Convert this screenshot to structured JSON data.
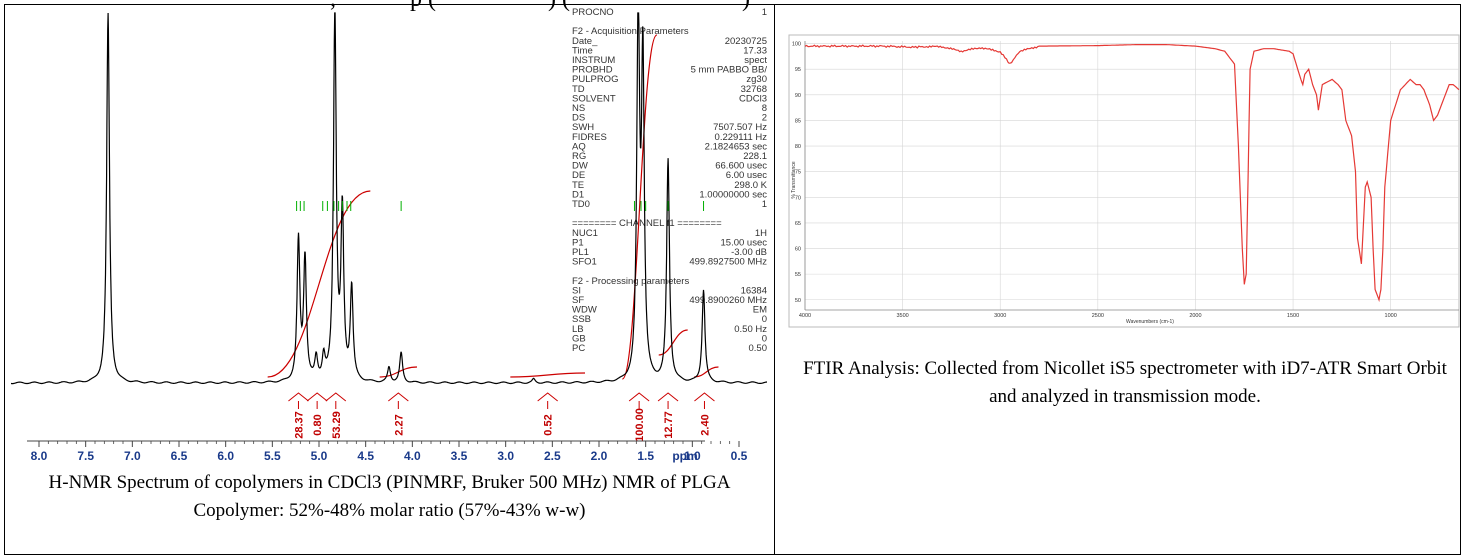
{
  "top_fragments": [
    ", ",
    "p (",
    ") (",
    ")"
  ],
  "nmr": {
    "caption": "H-NMR Spectrum of copolymers in CDCl3 (PINMRF, Bruker 500 MHz) NMR of PLGA Copolymer: 52%-48%  molar ratio (57%-43% w-w)",
    "axis_labels": [
      "8.0",
      "7.5",
      "7.0",
      "6.5",
      "6.0",
      "5.5",
      "5.0",
      "4.5",
      "4.0",
      "3.5",
      "3.0",
      "2.5",
      "2.0",
      "1.5",
      "1.0",
      "0.5",
      "ppm"
    ],
    "integrals": [
      "28.37",
      "0.80",
      "53.29",
      "2.27",
      "0.52",
      "100.00",
      "12.77",
      "2.40"
    ],
    "params": [
      [
        "PROCNO",
        "1"
      ],
      [
        "",
        ""
      ],
      [
        "F2 - Acquisition Parameters",
        ""
      ],
      [
        "Date_",
        "20230725"
      ],
      [
        "Time",
        "17.33"
      ],
      [
        "INSTRUM",
        "spect"
      ],
      [
        "PROBHD",
        "5 mm PABBO BB/"
      ],
      [
        "PULPROG",
        "zg30"
      ],
      [
        "TD",
        "32768"
      ],
      [
        "SOLVENT",
        "CDCl3"
      ],
      [
        "NS",
        "8"
      ],
      [
        "DS",
        "2"
      ],
      [
        "SWH",
        "7507.507 Hz"
      ],
      [
        "FIDRES",
        "0.229111 Hz"
      ],
      [
        "AQ",
        "2.1824653 sec"
      ],
      [
        "RG",
        "228.1"
      ],
      [
        "DW",
        "66.600 usec"
      ],
      [
        "DE",
        "6.00 usec"
      ],
      [
        "TE",
        "298.0 K"
      ],
      [
        "D1",
        "1.00000000 sec"
      ],
      [
        "TD0",
        "1"
      ],
      [
        "",
        ""
      ],
      [
        "======== CHANNEL f1 ========",
        ""
      ],
      [
        "NUC1",
        "1H"
      ],
      [
        "P1",
        "15.00 usec"
      ],
      [
        "PL1",
        "-3.00 dB"
      ],
      [
        "SFO1",
        "499.8927500 MHz"
      ],
      [
        "",
        ""
      ],
      [
        "F2 - Processing parameters",
        ""
      ],
      [
        "SI",
        "16384"
      ],
      [
        "SF",
        "499.8900260 MHz"
      ],
      [
        "WDW",
        "EM"
      ],
      [
        "SSB",
        "0"
      ],
      [
        "LB",
        "0.50 Hz"
      ],
      [
        "GB",
        "0"
      ],
      [
        "PC",
        "0.50"
      ]
    ]
  },
  "ftir": {
    "caption": "FTIR Analysis: Collected from Nicollet iS5 spectrometer with iD7-ATR Smart Orbit and analyzed in transmission mode.",
    "xlabel": "Wavenumbers (cm-1)",
    "ylabel": "% Transmittance",
    "xticks": [
      "4000",
      "3500",
      "3000",
      "2500",
      "2000",
      "1500",
      "1000"
    ],
    "yticks": [
      "100",
      "95",
      "90",
      "85",
      "80",
      "75",
      "70",
      "65",
      "60",
      "55",
      "50"
    ]
  },
  "chart_data": [
    {
      "type": "line",
      "xlabel": "ppm",
      "xlim": [
        8.3,
        0.2
      ],
      "x_ticks": [
        8.0,
        7.5,
        7.0,
        6.5,
        6.0,
        5.5,
        5.0,
        4.5,
        4.0,
        3.5,
        3.0,
        2.5,
        2.0,
        1.5,
        1.0,
        0.5
      ],
      "peaks": [
        {
          "ppm": 7.26,
          "height": 1.0
        },
        {
          "ppm": 5.22,
          "height": 0.38
        },
        {
          "ppm": 5.15,
          "height": 0.33
        },
        {
          "ppm": 5.03,
          "height": 0.06
        },
        {
          "ppm": 4.95,
          "height": 0.06
        },
        {
          "ppm": 4.83,
          "height": 1.0
        },
        {
          "ppm": 4.75,
          "height": 0.45
        },
        {
          "ppm": 4.65,
          "height": 0.25
        },
        {
          "ppm": 4.25,
          "height": 0.04
        },
        {
          "ppm": 4.12,
          "height": 0.08
        },
        {
          "ppm": 2.7,
          "height": 0.01
        },
        {
          "ppm": 1.58,
          "height": 1.0
        },
        {
          "ppm": 1.53,
          "height": 0.85
        },
        {
          "ppm": 1.26,
          "height": 0.6
        },
        {
          "ppm": 0.88,
          "height": 0.25
        }
      ],
      "integrals": [
        {
          "ppm": 5.22,
          "value": 28.37
        },
        {
          "ppm": 5.02,
          "value": 0.8
        },
        {
          "ppm": 4.82,
          "value": 53.29
        },
        {
          "ppm": 4.15,
          "value": 2.27
        },
        {
          "ppm": 2.55,
          "value": 0.52
        },
        {
          "ppm": 1.57,
          "value": 100.0
        },
        {
          "ppm": 1.26,
          "value": 12.77
        },
        {
          "ppm": 0.87,
          "value": 2.4
        }
      ]
    },
    {
      "type": "line",
      "xlabel": "Wavenumbers (cm-1)",
      "ylabel": "% Transmittance",
      "xlim": [
        4000,
        650
      ],
      "ylim": [
        48,
        100.5
      ],
      "x": [
        4000,
        3800,
        3600,
        3450,
        3400,
        3300,
        3200,
        3100,
        3000,
        2960,
        2950,
        2900,
        2800,
        2500,
        2300,
        2150,
        2000,
        1900,
        1850,
        1800,
        1780,
        1760,
        1750,
        1740,
        1730,
        1720,
        1700,
        1650,
        1600,
        1520,
        1500,
        1460,
        1450,
        1440,
        1420,
        1400,
        1380,
        1370,
        1350,
        1300,
        1270,
        1250,
        1230,
        1200,
        1180,
        1170,
        1150,
        1130,
        1120,
        1100,
        1090,
        1080,
        1060,
        1050,
        1040,
        1030,
        1000,
        950,
        900,
        870,
        850,
        830,
        800,
        780,
        760,
        740,
        720,
        700,
        680,
        650
      ],
      "y": [
        99.5,
        99.5,
        99.5,
        99.3,
        99.4,
        99.4,
        98.5,
        99.2,
        98.4,
        96.5,
        96.0,
        98.5,
        99.5,
        99.6,
        99.8,
        99.8,
        99.5,
        99.0,
        98.5,
        96.0,
        80.0,
        60.0,
        53.0,
        55.0,
        75.0,
        95.0,
        98.5,
        99.0,
        99.0,
        98.5,
        98.0,
        93.0,
        92.0,
        94.0,
        95.0,
        92.0,
        90.0,
        87.0,
        92.0,
        93.0,
        92.0,
        91.0,
        85.0,
        82.0,
        75.0,
        62.0,
        57.0,
        72.0,
        73.0,
        70.0,
        60.0,
        52.0,
        50.0,
        52.0,
        60.0,
        72.0,
        85.0,
        91.0,
        93.0,
        92.0,
        92.0,
        91.0,
        88.0,
        85.0,
        86.0,
        88.0,
        90.0,
        92.0,
        92.0,
        91.0
      ]
    }
  ],
  "colors": {
    "spectrum": "#000000",
    "integral": "#cc0000",
    "peak_marker": "#00b000",
    "ftir_line": "#e53935",
    "ftir_grid": "#cfcfcf"
  }
}
